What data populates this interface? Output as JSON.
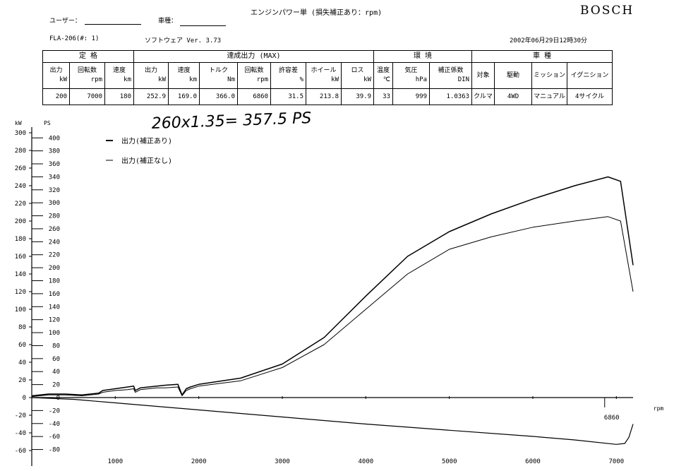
{
  "header": {
    "title": "エンジンパワー単 (損失補正あり：rpm)",
    "brand": "BOSCH",
    "user_label": "ユーザー：",
    "vehicle_label": "車種：",
    "model": "FLA-206(#: 1)",
    "software": "ソフトウェア Ver. 3.73",
    "datetime": "2002年06月29日12時30分"
  },
  "table": {
    "groups": [
      "定 格",
      "達成出力 (MAX)",
      "環 境",
      "車 種"
    ],
    "headers": [
      {
        "name": "出力",
        "unit": "kW"
      },
      {
        "name": "回転数",
        "unit": "rpm"
      },
      {
        "name": "速度",
        "unit": "km"
      },
      {
        "name": "出力",
        "unit": "kW"
      },
      {
        "name": "速度",
        "unit": "km"
      },
      {
        "name": "トルク",
        "unit": "Nm"
      },
      {
        "name": "回転数",
        "unit": "rpm"
      },
      {
        "name": "許容差",
        "unit": "%"
      },
      {
        "name": "ホイール",
        "unit": "kW"
      },
      {
        "name": "ロス",
        "unit": "kW"
      },
      {
        "name": "温度",
        "unit": "℃"
      },
      {
        "name": "気圧",
        "unit": "hPa"
      },
      {
        "name": "補正係数",
        "unit": "DIN"
      },
      {
        "name": "対象",
        "unit": ""
      },
      {
        "name": "駆動",
        "unit": ""
      },
      {
        "name": "ミッション",
        "unit": ""
      },
      {
        "name": "イグニション",
        "unit": ""
      }
    ],
    "values": [
      "200",
      "7000",
      "180",
      "252.9",
      "169.0",
      "366.0",
      "6860",
      "31.5",
      "213.8",
      "39.9",
      "33",
      "999",
      "1.0363",
      "クルマ",
      "4WD",
      "マニュアル",
      "4サイクル"
    ]
  },
  "annotation": "260x1.35= 357.5 PS",
  "chart_data": {
    "type": "line",
    "xlabel": "rpm",
    "xlim": [
      0,
      7200
    ],
    "x_ticks": [
      1000,
      2000,
      3000,
      4000,
      5000,
      6000,
      7000
    ],
    "ylabel_kw": "kW",
    "ylabel_ps": "PS",
    "ylim_kw": [
      -60,
      300
    ],
    "y_ticks_kw": [
      300,
      280,
      260,
      240,
      220,
      200,
      180,
      160,
      140,
      120,
      100,
      80,
      60,
      40,
      20,
      0,
      -20,
      -40,
      -60
    ],
    "y_ticks_ps": [
      400,
      380,
      360,
      340,
      320,
      300,
      280,
      260,
      240,
      220,
      200,
      180,
      160,
      140,
      120,
      100,
      80,
      60,
      40,
      20,
      0,
      -20,
      -40,
      -60,
      -80
    ],
    "marker_label": "6860",
    "legend": [
      "出力(補正あり)",
      "出力(補正なし)"
    ],
    "series": [
      {
        "name": "出力(補正あり)",
        "x": [
          0,
          100,
          200,
          400,
          600,
          800,
          850,
          1000,
          1150,
          1220,
          1240,
          1300,
          1400,
          1500,
          1600,
          1750,
          1800,
          1850,
          1900,
          2000,
          2500,
          3000,
          3500,
          4000,
          4500,
          5000,
          5500,
          6000,
          6500,
          6900,
          7050,
          7200
        ],
        "y": [
          2,
          3,
          4,
          4,
          3,
          5,
          8,
          10,
          12,
          13,
          8,
          11,
          12,
          13,
          14,
          15,
          3,
          10,
          12,
          15,
          22,
          38,
          68,
          115,
          160,
          188,
          208,
          225,
          240,
          250,
          245,
          150
        ]
      },
      {
        "name": "出力(補正なし)",
        "x": [
          0,
          100,
          200,
          400,
          600,
          800,
          850,
          1000,
          1150,
          1220,
          1240,
          1300,
          1400,
          1500,
          1600,
          1750,
          1800,
          1850,
          1900,
          2000,
          2500,
          3000,
          3500,
          4000,
          4500,
          5000,
          5500,
          6000,
          6500,
          6900,
          7050,
          7200
        ],
        "y": [
          1,
          2,
          3,
          3,
          2,
          4,
          6,
          8,
          9,
          10,
          6,
          9,
          10,
          11,
          11,
          12,
          2,
          8,
          10,
          13,
          19,
          34,
          60,
          100,
          140,
          168,
          182,
          193,
          200,
          205,
          200,
          120
        ]
      },
      {
        "name": "ロス",
        "x": [
          0,
          500,
          1000,
          2000,
          3000,
          4000,
          5000,
          6000,
          6500,
          7000,
          7100,
          7150,
          7200
        ],
        "y": [
          0,
          -2,
          -6,
          -14,
          -22,
          -30,
          -37,
          -44,
          -48,
          -53,
          -52,
          -45,
          -30
        ]
      }
    ]
  }
}
